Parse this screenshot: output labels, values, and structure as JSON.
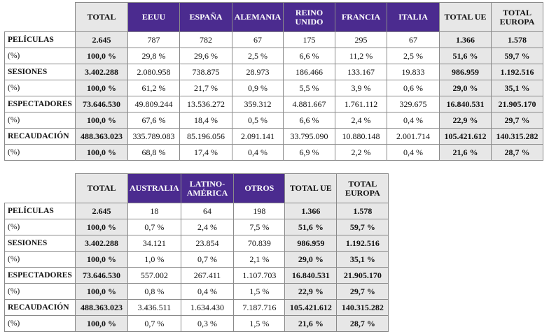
{
  "table1": {
    "headers": [
      "TOTAL",
      "EEUU",
      "ESPAÑA",
      "ALEMANIA",
      "REINO UNIDO",
      "FRANCIA",
      "ITALIA",
      "TOTAL UE",
      "TOTAL EUROPA"
    ],
    "rows": [
      {
        "label": "PELÍCULAS",
        "values": [
          "2.645",
          "787",
          "782",
          "67",
          "175",
          "295",
          "67",
          "1.366",
          "1.578"
        ]
      },
      {
        "label": "(%)",
        "values": [
          "100,0 %",
          "29,8 %",
          "29,6 %",
          "2,5 %",
          "6,6 %",
          "11,2 %",
          "2,5 %",
          "51,6 %",
          "59,7 %"
        ]
      },
      {
        "label": "SESIONES",
        "values": [
          "3.402.288",
          "2.080.958",
          "738.875",
          "28.973",
          "186.466",
          "133.167",
          "19.833",
          "986.959",
          "1.192.516"
        ]
      },
      {
        "label": "(%)",
        "values": [
          "100,0 %",
          "61,2 %",
          "21,7 %",
          "0,9 %",
          "5,5 %",
          "3,9 %",
          "0,6 %",
          "29,0 %",
          "35,1 %"
        ]
      },
      {
        "label": "ESPECTADORES",
        "values": [
          "73.646.530",
          "49.809.244",
          "13.536.272",
          "359.312",
          "4.881.667",
          "1.761.112",
          "329.675",
          "16.840.531",
          "21.905.170"
        ]
      },
      {
        "label": "(%)",
        "values": [
          "100,0 %",
          "67,6 %",
          "18,4 %",
          "0,5 %",
          "6,6 %",
          "2,4 %",
          "0,4 %",
          "22,9 %",
          "29,7 %"
        ]
      },
      {
        "label": "RECAUDACIÓN",
        "values": [
          "488.363.023",
          "335.789.083",
          "85.196.056",
          "2.091.141",
          "33.795.090",
          "10.880.148",
          "2.001.714",
          "105.421.612",
          "140.315.282"
        ]
      },
      {
        "label": "(%)",
        "values": [
          "100,0 %",
          "68,8 %",
          "17,4 %",
          "0,4 %",
          "6,9 %",
          "2,2 %",
          "0,4 %",
          "21,6 %",
          "28,7 %"
        ]
      }
    ]
  },
  "table2": {
    "headers": [
      "TOTAL",
      "AUSTRALIA",
      "LATINO-AMÉRICA",
      "OTROS",
      "TOTAL UE",
      "TOTAL EUROPA"
    ],
    "rows": [
      {
        "label": "PELÍCULAS",
        "values": [
          "2.645",
          "18",
          "64",
          "198",
          "1.366",
          "1.578"
        ]
      },
      {
        "label": "(%)",
        "values": [
          "100,0 %",
          "0,7 %",
          "2,4 %",
          "7,5 %",
          "51,6 %",
          "59,7 %"
        ]
      },
      {
        "label": "SESIONES",
        "values": [
          "3.402.288",
          "34.121",
          "23.854",
          "70.839",
          "986.959",
          "1.192.516"
        ]
      },
      {
        "label": "(%)",
        "values": [
          "100,0 %",
          "1,0 %",
          "0,7 %",
          "2,1 %",
          "29,0 %",
          "35,1 %"
        ]
      },
      {
        "label": "ESPECTADORES",
        "values": [
          "73.646.530",
          "557.002",
          "267.411",
          "1.107.703",
          "16.840.531",
          "21.905.170"
        ]
      },
      {
        "label": "(%)",
        "values": [
          "100,0 %",
          "0,8 %",
          "0,4 %",
          "1,5 %",
          "22,9 %",
          "29,7 %"
        ]
      },
      {
        "label": "RECAUDACIÓN",
        "values": [
          "488.363.023",
          "3.436.511",
          "1.634.430",
          "7.187.716",
          "105.421.612",
          "140.315.282"
        ]
      },
      {
        "label": "(%)",
        "values": [
          "100,0 %",
          "0,7 %",
          "0,3 %",
          "1,5 %",
          "21,6 %",
          "28,7 %"
        ]
      }
    ]
  },
  "colors": {
    "header_purple": "#4b2b8f",
    "header_gray": "#e7e7e7",
    "total_column_gray": "#e7e7e7",
    "border": "#8a8a8a"
  }
}
